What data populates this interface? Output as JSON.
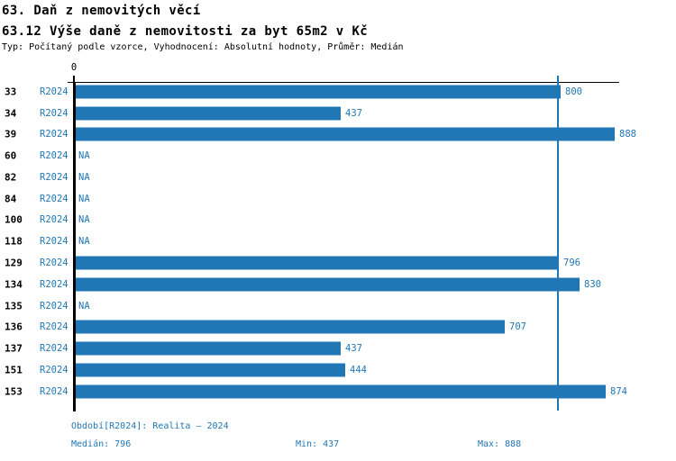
{
  "header": {
    "title1": "63. Daň z nemovitých věcí",
    "title2": "63.12 Výše daně z nemovitosti za byt 65m2 v Kč",
    "subtitle": "Typ: Počítaný podle vzorce, Vyhodnocení: Absolutní hodnoty, Průměr: Medián"
  },
  "chart_data": {
    "type": "bar",
    "orientation": "horizontal",
    "x_zero_label": "0",
    "xlim": [
      0,
      897
    ],
    "grid": false,
    "series_period": "R2024",
    "na_label": "NA",
    "median_line_value": 796,
    "categories": [
      "33",
      "34",
      "39",
      "60",
      "82",
      "84",
      "100",
      "118",
      "129",
      "134",
      "135",
      "136",
      "137",
      "151",
      "153"
    ],
    "values": [
      800,
      437,
      888,
      null,
      null,
      null,
      null,
      null,
      796,
      830,
      null,
      707,
      437,
      444,
      874
    ]
  },
  "footer": {
    "period": "Období[R2024]: Realita – 2024",
    "median": "Medián: 796",
    "min": "Min: 437",
    "max": "Max: 888"
  },
  "colors": {
    "accent": "#2077b4",
    "axis": "#000000",
    "background": "#ffffff"
  }
}
